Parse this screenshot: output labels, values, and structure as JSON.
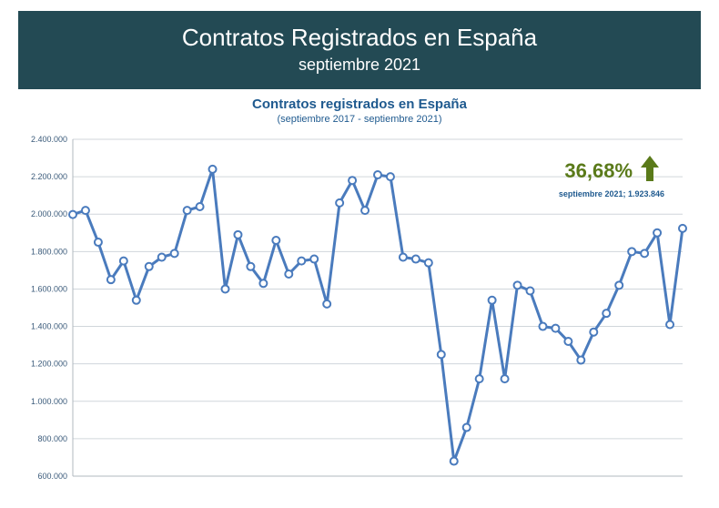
{
  "header": {
    "title": "Contratos Registrados en España",
    "subtitle": "septiembre 2021",
    "bg_color": "#234a54",
    "text_color": "#ffffff",
    "title_fontsize": 26,
    "subtitle_fontsize": 18
  },
  "chart": {
    "type": "line",
    "title": "Contratos registrados en España",
    "subtitle": "(septiembre 2017 - septiembre 2021)",
    "title_color": "#1f5a8f",
    "title_fontsize": 15,
    "subtitle_fontsize": 11,
    "background_color": "#ffffff",
    "grid_color": "#d0d6db",
    "axis_color": "#b0b8bf",
    "ylim": [
      600000,
      2400000
    ],
    "ytick_step": 200000,
    "ytick_labels": [
      "600.000",
      "800.000",
      "1.000.000",
      "1.200.000",
      "1.400.000",
      "1.600.000",
      "1.800.000",
      "2.000.000",
      "2.200.000",
      "2.400.000"
    ],
    "ytick_color": "#3a5a7a",
    "ytick_fontsize": 9,
    "line_color": "#4a7bbd",
    "line_width": 3,
    "marker_style": "circle",
    "marker_fill": "#ffffff",
    "marker_stroke": "#4a7bbd",
    "marker_stroke_width": 2,
    "marker_radius": 4,
    "values": [
      1998000,
      2020000,
      1850000,
      1650000,
      1750000,
      1540000,
      1720000,
      1770000,
      1790000,
      2020000,
      2040000,
      2240000,
      1600000,
      1890000,
      1720000,
      1630000,
      1860000,
      1680000,
      1750000,
      1760000,
      1520000,
      2060000,
      2180000,
      2020000,
      2210000,
      2200000,
      1770000,
      1760000,
      1740000,
      1250000,
      680000,
      860000,
      1120000,
      1540000,
      1120000,
      1620000,
      1590000,
      1400000,
      1390000,
      1320000,
      1220000,
      1370000,
      1470000,
      1620000,
      1800000,
      1790000,
      1900000,
      1410000,
      1923846
    ]
  },
  "callout": {
    "pct": "36,68%",
    "pct_color": "#5a7a1a",
    "pct_fontsize": 22,
    "arrow_color": "#5a7a1a",
    "sub_text": "septiembre 2021; 1.923.846",
    "sub_color": "#1f5a8f",
    "sub_fontsize": 9
  }
}
